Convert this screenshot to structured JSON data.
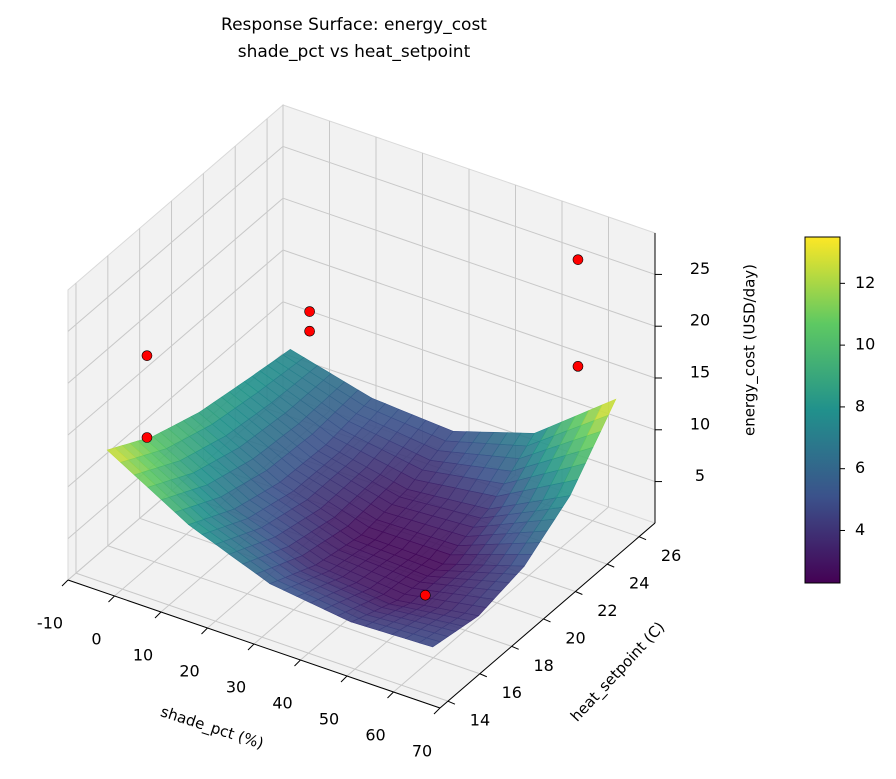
{
  "chart_data": {
    "type": "surface3d",
    "title": [
      "Response Surface: energy_cost",
      "shade_pct vs heat_setpoint"
    ],
    "xlabel": "shade_pct (%)",
    "ylabel": "heat_setpoint (C)",
    "zlabel": "energy_cost (USD/day)",
    "xlim": [
      -10,
      70
    ],
    "ylim": [
      13.5,
      27
    ],
    "zlim": [
      1,
      29
    ],
    "xticks": [
      -10,
      0,
      10,
      20,
      30,
      40,
      50,
      60,
      70
    ],
    "yticks": [
      14,
      16,
      18,
      20,
      22,
      24,
      26
    ],
    "zticks": [
      5,
      10,
      15,
      20,
      25
    ],
    "grid": true,
    "colormap": "viridis",
    "surface": {
      "x": [
        -5,
        12.5,
        30,
        47.5,
        65
      ],
      "y": [
        14.5,
        17.375,
        20.25,
        23.125,
        26
      ],
      "z": [
        [
          13.0,
          8.5,
          5.5,
          4.5,
          4.8
        ],
        [
          10.5,
          6.2,
          3.5,
          2.8,
          4.0
        ],
        [
          9.0,
          5.0,
          2.6,
          2.5,
          5.0
        ],
        [
          8.2,
          4.8,
          3.2,
          4.0,
          8.0
        ],
        [
          7.5,
          5.5,
          5.0,
          7.5,
          13.5
        ]
      ]
    },
    "points": {
      "color": "#ff0000",
      "x": [
        60,
        62,
        62,
        6,
        6,
        -5,
        -5
      ],
      "y": [
        15.5,
        24.5,
        24.5,
        24,
        24,
        17,
        17
      ],
      "z": [
        7.7,
        28.5,
        18.2,
        15.5,
        13.6,
        18.8,
        10.9
      ]
    },
    "colorbar": {
      "clim": [
        2.3,
        13.5
      ],
      "ticks": [
        4,
        6,
        8,
        10,
        12
      ]
    }
  }
}
